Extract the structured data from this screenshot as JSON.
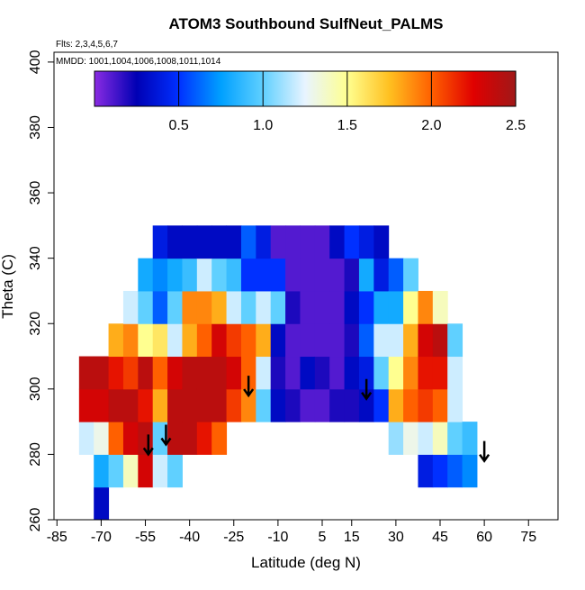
{
  "chart_data": {
    "type": "heatmap",
    "title": "ATOM3 Southbound SulfNeut_PALMS",
    "subtitle": "Flts: 2,3,4,5,6,7",
    "annotation": "MMDD: 1001,1004,1006,1008,1011,1014",
    "x_label": "Latitude (deg N)",
    "y_label": "Theta (C)",
    "xlim": [
      -86,
      85
    ],
    "ylim": [
      260,
      403
    ],
    "xticks": [
      -85,
      -70,
      -55,
      -40,
      -25,
      -10,
      5,
      15,
      30,
      45,
      60,
      75
    ],
    "yticks": [
      260,
      280,
      300,
      320,
      340,
      360,
      380,
      400
    ],
    "x_bins": [
      -77.5,
      -72.5,
      -67.5,
      -62.5,
      -57.5,
      -52.5,
      -47.5,
      -42.5,
      -37.5,
      -32.5,
      -27.5,
      -22.5,
      -17.5,
      -12.5,
      -7.5,
      -2.5,
      2.5,
      7.5,
      12.5,
      17.5,
      22.5,
      27.5,
      32.5,
      37.5,
      42.5,
      47.5,
      52.5,
      57.5
    ],
    "y_bins": [
      260,
      270,
      280,
      290,
      300,
      310,
      320,
      330,
      340,
      350
    ],
    "z": [
      [
        null,
        null,
        1.2,
        2.3,
        2.4,
        null,
        null,
        null,
        null
      ],
      [
        0.3,
        0.8,
        1.3,
        2.3,
        2.4,
        null,
        null,
        null,
        null
      ],
      [
        null,
        1.0,
        2.0,
        2.4,
        2.2,
        1.8,
        null,
        null,
        null
      ],
      [
        null,
        1.4,
        2.3,
        2.4,
        2.1,
        1.9,
        1.2,
        null,
        null
      ],
      [
        null,
        2.3,
        2.4,
        2.2,
        2.4,
        1.5,
        1.0,
        0.8,
        null
      ],
      [
        null,
        1.2,
        1.0,
        1.8,
        2.0,
        1.6,
        0.6,
        0.7,
        0.4
      ],
      [
        null,
        1.0,
        2.4,
        2.4,
        2.3,
        1.2,
        1.0,
        0.8,
        0.3
      ],
      [
        null,
        null,
        2.4,
        2.4,
        2.4,
        1.8,
        1.9,
        0.9,
        0.3
      ],
      [
        null,
        null,
        2.2,
        2.4,
        2.4,
        2.0,
        1.9,
        1.2,
        0.3
      ],
      [
        null,
        null,
        2.0,
        2.4,
        2.4,
        2.3,
        1.8,
        1.0,
        0.3
      ],
      [
        null,
        null,
        null,
        2.1,
        2.3,
        2.1,
        1.2,
        0.9,
        0.3
      ],
      [
        null,
        null,
        null,
        1.9,
        2.0,
        2.0,
        1.0,
        0.5,
        0.6
      ],
      [
        null,
        null,
        null,
        1.0,
        1.2,
        1.8,
        1.2,
        0.5,
        0.4
      ],
      [
        null,
        null,
        null,
        0.3,
        0.2,
        0.3,
        1.0,
        0.5,
        0.1
      ],
      [
        null,
        null,
        null,
        0.2,
        0.1,
        0.1,
        0.2,
        0.1,
        0.1
      ],
      [
        null,
        null,
        null,
        0.1,
        0.3,
        0.1,
        0.1,
        0.1,
        0.1
      ],
      [
        null,
        null,
        null,
        0.1,
        0.2,
        0.1,
        0.1,
        0.1,
        0.1
      ],
      [
        null,
        null,
        null,
        0.2,
        0.1,
        0.1,
        0.1,
        0.1,
        0.3
      ],
      [
        null,
        null,
        null,
        0.2,
        0.3,
        0.2,
        0.3,
        0.2,
        0.5
      ],
      [
        null,
        null,
        null,
        0.3,
        0.4,
        0.6,
        0.5,
        0.8,
        0.4
      ],
      [
        null,
        null,
        null,
        0.5,
        1.0,
        1.2,
        0.8,
        0.4,
        0.3
      ],
      [
        null,
        null,
        1.1,
        1.8,
        1.5,
        1.2,
        0.8,
        0.6,
        null
      ],
      [
        null,
        null,
        1.3,
        2.0,
        1.9,
        1.8,
        1.5,
        1.0,
        null
      ],
      [
        null,
        0.4,
        1.2,
        2.1,
        2.2,
        2.3,
        1.9,
        null,
        null
      ],
      [
        null,
        0.5,
        1.4,
        2.0,
        2.2,
        2.4,
        1.4,
        null,
        null
      ],
      [
        null,
        0.6,
        1.0,
        1.2,
        1.2,
        1.0,
        null,
        null,
        null
      ],
      [
        null,
        0.7,
        0.9,
        null,
        null,
        null,
        null,
        null,
        null
      ]
    ],
    "arrows": {
      "x": [
        -54,
        -48,
        -20,
        20,
        60
      ],
      "y": [
        280,
        283,
        298,
        297,
        278
      ]
    },
    "colorbar": {
      "lim": [
        0,
        2.5
      ],
      "ticks": [
        0.5,
        {
          "value": 1,
          "label": "1.0"
        },
        1.5,
        {
          "value": 2,
          "label": "2.0"
        },
        2.5
      ],
      "colors": [
        "#8a2be2",
        "#0000b4",
        "#0030ff",
        "#00a0ff",
        "#60d0ff",
        "#e8f4ff",
        "#ffff90",
        "#ffc020",
        "#ff6000",
        "#e00000",
        "#a01818"
      ]
    }
  }
}
